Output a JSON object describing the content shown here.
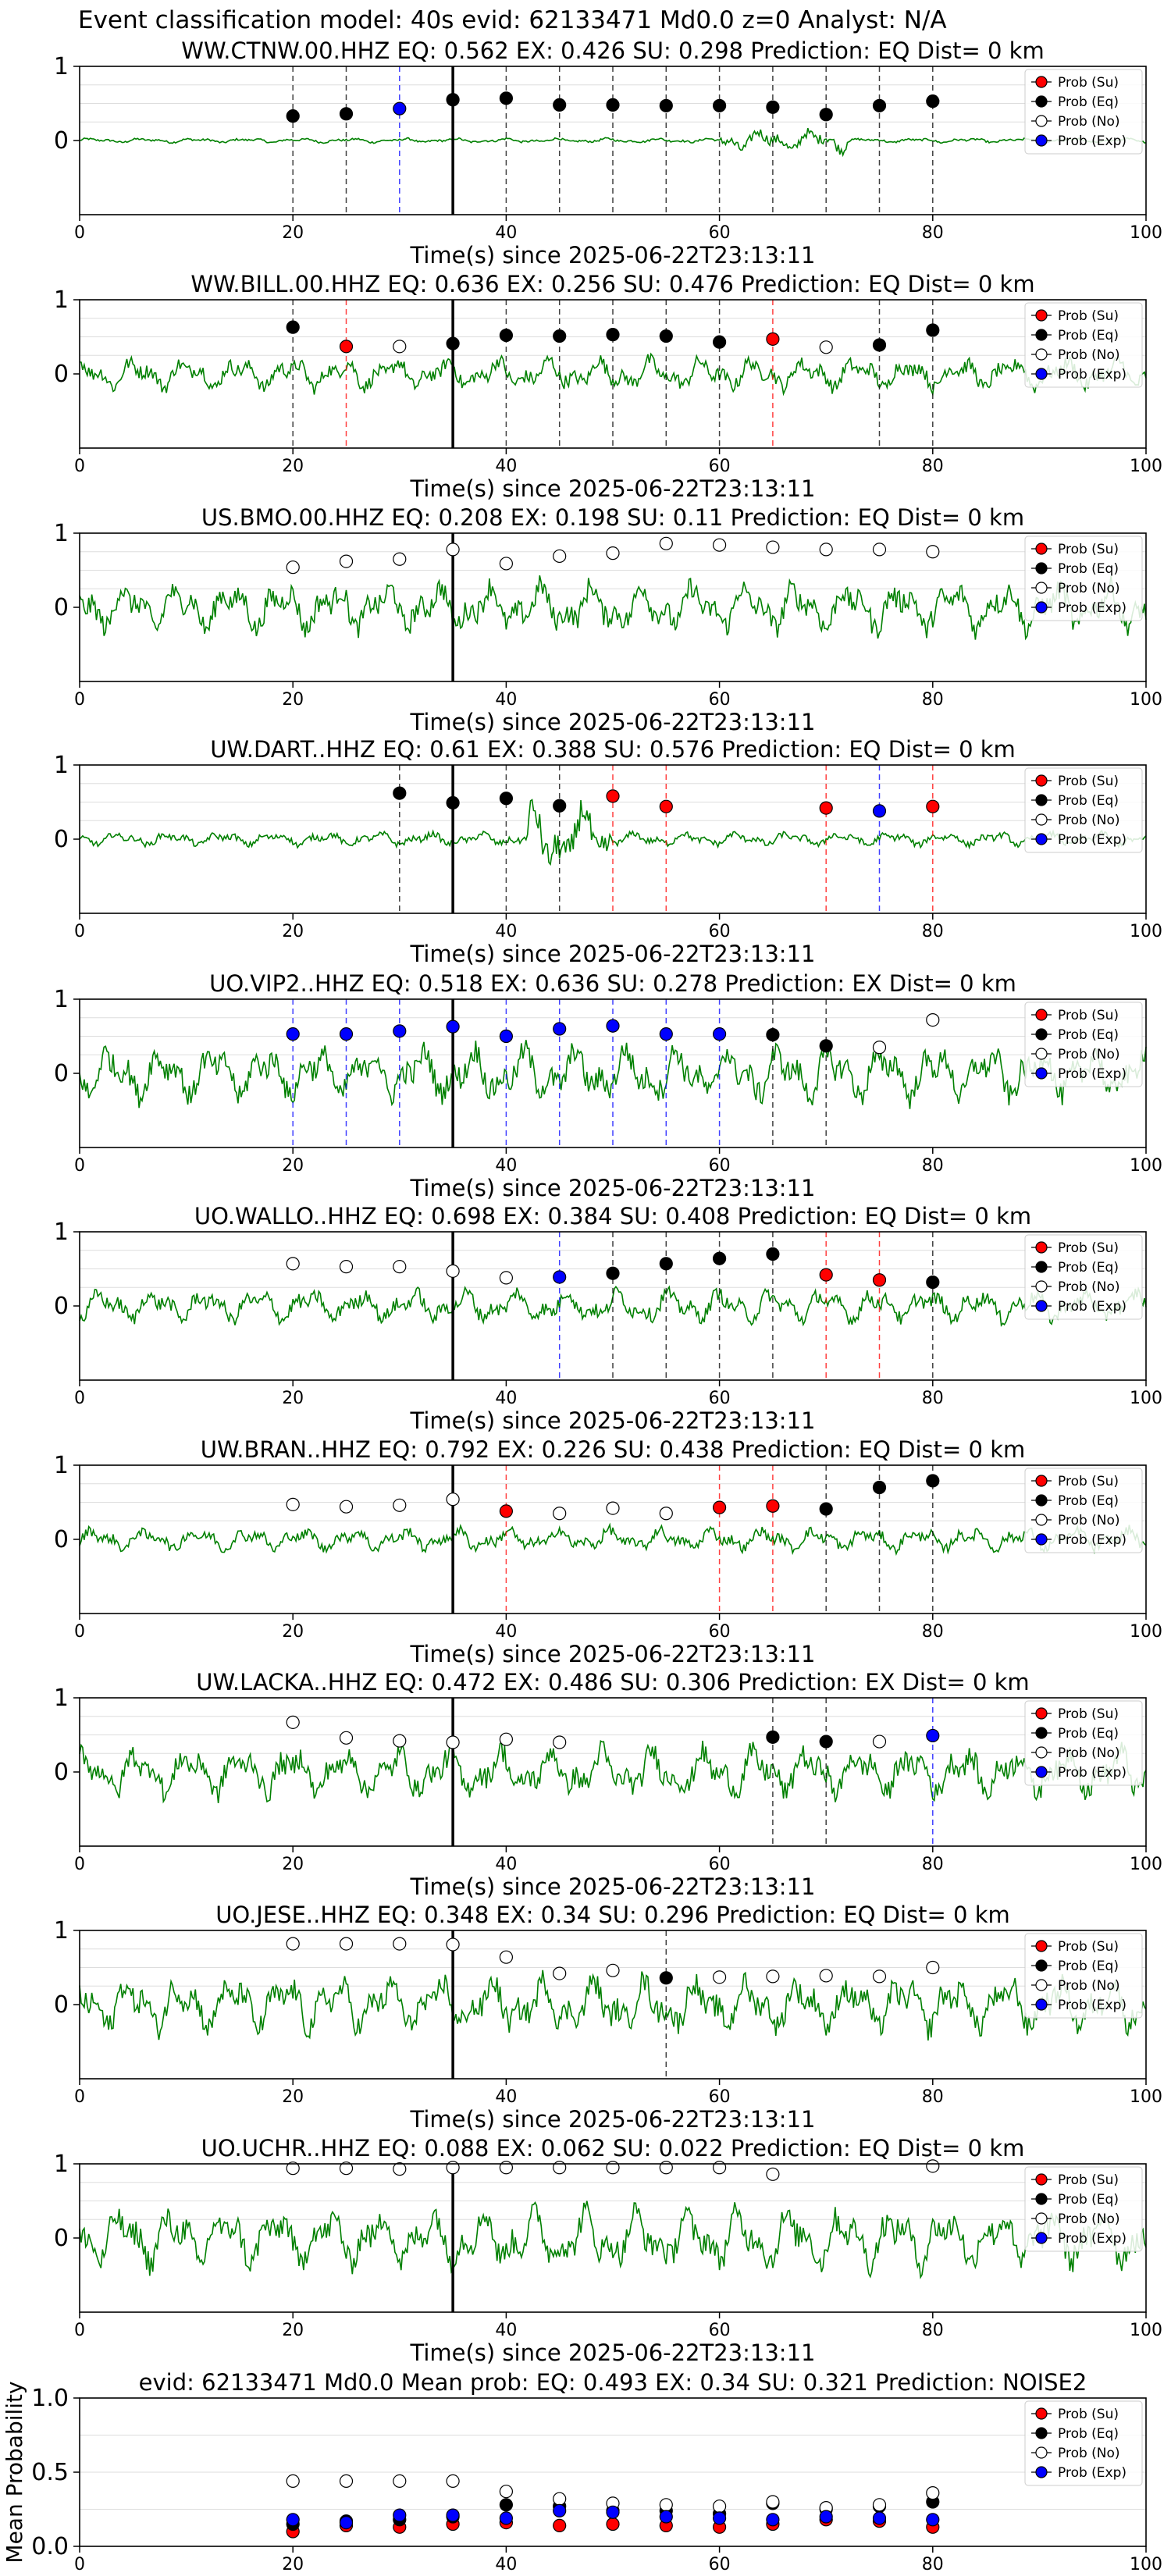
{
  "figure": {
    "suptitle": "Event classification model: 40s evid: 62133471 Md0.0 z=0 Analyst: N/A",
    "legend_labels": [
      "Prob (Su)",
      "Prob (Eq)",
      "Prob (No)",
      "Prob (Exp)"
    ],
    "colors": {
      "su": "#ff0000",
      "eq": "#000000",
      "no": "#ffffff",
      "exp": "#0000ff",
      "trace": "#008000",
      "pick_line": "#000000"
    }
  },
  "chart_data": [
    {
      "type": "scatter",
      "title": "WW.CTNW.00.HHZ   EQ: 0.562  EX: 0.426  SU: 0.298   Prediction: EQ    Dist= 0 km",
      "xlabel": "Time(s) since 2025-06-22T23:13:11",
      "xlim": [
        0,
        100
      ],
      "ylim": [
        -1,
        1
      ],
      "xticks": [
        "0",
        "20",
        "40",
        "60",
        "80",
        "100"
      ],
      "yticks": [
        "0",
        "1"
      ],
      "pick_time": 35,
      "trace_amp": 0.05,
      "points": [
        {
          "t": 20,
          "p": 0.33,
          "c": "eq"
        },
        {
          "t": 25,
          "p": 0.36,
          "c": "eq"
        },
        {
          "t": 30,
          "p": 0.43,
          "c": "exp"
        },
        {
          "t": 35,
          "p": 0.55,
          "c": "eq"
        },
        {
          "t": 40,
          "p": 0.57,
          "c": "eq"
        },
        {
          "t": 45,
          "p": 0.48,
          "c": "eq"
        },
        {
          "t": 50,
          "p": 0.48,
          "c": "eq"
        },
        {
          "t": 55,
          "p": 0.47,
          "c": "eq"
        },
        {
          "t": 60,
          "p": 0.47,
          "c": "eq"
        },
        {
          "t": 65,
          "p": 0.45,
          "c": "eq"
        },
        {
          "t": 70,
          "p": 0.35,
          "c": "eq"
        },
        {
          "t": 75,
          "p": 0.47,
          "c": "eq"
        },
        {
          "t": 80,
          "p": 0.53,
          "c": "eq"
        }
      ]
    },
    {
      "type": "scatter",
      "title": "WW.BILL.00.HHZ   EQ: 0.636  EX: 0.256  SU: 0.476   Prediction: EQ    Dist= 0 km",
      "xlabel": "Time(s) since 2025-06-22T23:13:11",
      "xlim": [
        0,
        100
      ],
      "ylim": [
        -1,
        1
      ],
      "xticks": [
        "0",
        "20",
        "40",
        "60",
        "80",
        "100"
      ],
      "yticks": [
        "0",
        "1"
      ],
      "pick_time": 35,
      "trace_amp": 0.35,
      "points": [
        {
          "t": 20,
          "p": 0.63,
          "c": "eq"
        },
        {
          "t": 25,
          "p": 0.37,
          "c": "su"
        },
        {
          "t": 30,
          "p": 0.37,
          "c": "no"
        },
        {
          "t": 35,
          "p": 0.41,
          "c": "eq"
        },
        {
          "t": 40,
          "p": 0.52,
          "c": "eq"
        },
        {
          "t": 45,
          "p": 0.51,
          "c": "eq"
        },
        {
          "t": 50,
          "p": 0.53,
          "c": "eq"
        },
        {
          "t": 55,
          "p": 0.51,
          "c": "eq"
        },
        {
          "t": 60,
          "p": 0.43,
          "c": "eq"
        },
        {
          "t": 65,
          "p": 0.47,
          "c": "su"
        },
        {
          "t": 70,
          "p": 0.36,
          "c": "no"
        },
        {
          "t": 75,
          "p": 0.39,
          "c": "eq"
        },
        {
          "t": 80,
          "p": 0.59,
          "c": "eq"
        }
      ]
    },
    {
      "type": "scatter",
      "title": "US.BMO.00.HHZ   EQ: 0.208  EX: 0.198  SU: 0.11   Prediction: EQ    Dist= 0 km",
      "xlabel": "Time(s) since 2025-06-22T23:13:11",
      "xlim": [
        0,
        100
      ],
      "ylim": [
        -1,
        1
      ],
      "xticks": [
        "0",
        "20",
        "40",
        "60",
        "80",
        "100"
      ],
      "yticks": [
        "0",
        "1"
      ],
      "pick_time": 35,
      "trace_amp": 0.55,
      "points": [
        {
          "t": 20,
          "p": 0.54,
          "c": "no"
        },
        {
          "t": 25,
          "p": 0.62,
          "c": "no"
        },
        {
          "t": 30,
          "p": 0.65,
          "c": "no"
        },
        {
          "t": 35,
          "p": 0.78,
          "c": "no"
        },
        {
          "t": 40,
          "p": 0.59,
          "c": "no"
        },
        {
          "t": 45,
          "p": 0.69,
          "c": "no"
        },
        {
          "t": 50,
          "p": 0.73,
          "c": "no"
        },
        {
          "t": 55,
          "p": 0.86,
          "c": "no"
        },
        {
          "t": 60,
          "p": 0.84,
          "c": "no"
        },
        {
          "t": 65,
          "p": 0.81,
          "c": "no"
        },
        {
          "t": 70,
          "p": 0.78,
          "c": "no"
        },
        {
          "t": 75,
          "p": 0.78,
          "c": "no"
        },
        {
          "t": 80,
          "p": 0.75,
          "c": "no"
        }
      ]
    },
    {
      "type": "scatter",
      "title": "UW.DART..HHZ   EQ: 0.61  EX: 0.388  SU: 0.576   Prediction: EQ    Dist= 0 km",
      "xlabel": "Time(s) since 2025-06-22T23:13:11",
      "xlim": [
        0,
        100
      ],
      "ylim": [
        -1,
        1
      ],
      "xticks": [
        "0",
        "20",
        "40",
        "60",
        "80",
        "100"
      ],
      "yticks": [
        "0",
        "1"
      ],
      "pick_time": 35,
      "trace_amp": 0.15,
      "points": [
        {
          "t": 30,
          "p": 0.62,
          "c": "eq"
        },
        {
          "t": 35,
          "p": 0.49,
          "c": "eq"
        },
        {
          "t": 40,
          "p": 0.55,
          "c": "eq"
        },
        {
          "t": 45,
          "p": 0.45,
          "c": "eq"
        },
        {
          "t": 50,
          "p": 0.58,
          "c": "su"
        },
        {
          "t": 55,
          "p": 0.44,
          "c": "su"
        },
        {
          "t": 70,
          "p": 0.42,
          "c": "su"
        },
        {
          "t": 75,
          "p": 0.38,
          "c": "exp"
        },
        {
          "t": 80,
          "p": 0.44,
          "c": "su"
        }
      ]
    },
    {
      "type": "scatter",
      "title": "UO.VIP2..HHZ   EQ: 0.518  EX: 0.636  SU: 0.278   Prediction: EX    Dist= 0 km",
      "xlabel": "Time(s) since 2025-06-22T23:13:11",
      "xlim": [
        0,
        100
      ],
      "ylim": [
        -1,
        1
      ],
      "xticks": [
        "0",
        "20",
        "40",
        "60",
        "80",
        "100"
      ],
      "yticks": [
        "0",
        "1"
      ],
      "pick_time": 35,
      "trace_amp": 0.6,
      "points": [
        {
          "t": 20,
          "p": 0.53,
          "c": "exp"
        },
        {
          "t": 25,
          "p": 0.53,
          "c": "exp"
        },
        {
          "t": 30,
          "p": 0.57,
          "c": "exp"
        },
        {
          "t": 35,
          "p": 0.63,
          "c": "exp"
        },
        {
          "t": 40,
          "p": 0.5,
          "c": "exp"
        },
        {
          "t": 45,
          "p": 0.6,
          "c": "exp"
        },
        {
          "t": 50,
          "p": 0.64,
          "c": "exp"
        },
        {
          "t": 55,
          "p": 0.53,
          "c": "exp"
        },
        {
          "t": 60,
          "p": 0.53,
          "c": "exp"
        },
        {
          "t": 65,
          "p": 0.52,
          "c": "eq"
        },
        {
          "t": 70,
          "p": 0.37,
          "c": "eq"
        },
        {
          "t": 75,
          "p": 0.35,
          "c": "no"
        },
        {
          "t": 80,
          "p": 0.72,
          "c": "no"
        }
      ]
    },
    {
      "type": "scatter",
      "title": "UO.WALLO..HHZ   EQ: 0.698  EX: 0.384  SU: 0.408   Prediction: EQ    Dist= 0 km",
      "xlabel": "Time(s) since 2025-06-22T23:13:11",
      "xlim": [
        0,
        100
      ],
      "ylim": [
        -1,
        1
      ],
      "xticks": [
        "0",
        "20",
        "40",
        "60",
        "80",
        "100"
      ],
      "yticks": [
        "0",
        "1"
      ],
      "pick_time": 35,
      "trace_amp": 0.35,
      "points": [
        {
          "t": 20,
          "p": 0.57,
          "c": "no"
        },
        {
          "t": 25,
          "p": 0.53,
          "c": "no"
        },
        {
          "t": 30,
          "p": 0.53,
          "c": "no"
        },
        {
          "t": 35,
          "p": 0.47,
          "c": "no"
        },
        {
          "t": 40,
          "p": 0.38,
          "c": "no"
        },
        {
          "t": 45,
          "p": 0.39,
          "c": "exp"
        },
        {
          "t": 50,
          "p": 0.44,
          "c": "eq"
        },
        {
          "t": 55,
          "p": 0.57,
          "c": "eq"
        },
        {
          "t": 60,
          "p": 0.64,
          "c": "eq"
        },
        {
          "t": 65,
          "p": 0.7,
          "c": "eq"
        },
        {
          "t": 70,
          "p": 0.42,
          "c": "su"
        },
        {
          "t": 75,
          "p": 0.35,
          "c": "su"
        },
        {
          "t": 80,
          "p": 0.32,
          "c": "eq"
        }
      ]
    },
    {
      "type": "scatter",
      "title": "UW.BRAN..HHZ   EQ: 0.792  EX: 0.226  SU: 0.438   Prediction: EQ    Dist= 0 km",
      "xlabel": "Time(s) since 2025-06-22T23:13:11",
      "xlim": [
        0,
        100
      ],
      "ylim": [
        -1,
        1
      ],
      "xticks": [
        "0",
        "20",
        "40",
        "60",
        "80",
        "100"
      ],
      "yticks": [
        "0",
        "1"
      ],
      "pick_time": 35,
      "trace_amp": 0.25,
      "points": [
        {
          "t": 20,
          "p": 0.47,
          "c": "no"
        },
        {
          "t": 25,
          "p": 0.44,
          "c": "no"
        },
        {
          "t": 30,
          "p": 0.46,
          "c": "no"
        },
        {
          "t": 35,
          "p": 0.54,
          "c": "no"
        },
        {
          "t": 40,
          "p": 0.38,
          "c": "su"
        },
        {
          "t": 45,
          "p": 0.35,
          "c": "no"
        },
        {
          "t": 50,
          "p": 0.42,
          "c": "no"
        },
        {
          "t": 55,
          "p": 0.35,
          "c": "no"
        },
        {
          "t": 60,
          "p": 0.43,
          "c": "su"
        },
        {
          "t": 65,
          "p": 0.45,
          "c": "su"
        },
        {
          "t": 70,
          "p": 0.41,
          "c": "eq"
        },
        {
          "t": 75,
          "p": 0.7,
          "c": "eq"
        },
        {
          "t": 80,
          "p": 0.79,
          "c": "eq"
        }
      ]
    },
    {
      "type": "scatter",
      "title": "UW.LACKA..HHZ   EQ: 0.472  EX: 0.486  SU: 0.306   Prediction: EX    Dist= 0 km",
      "xlabel": "Time(s) since 2025-06-22T23:13:11",
      "xlim": [
        0,
        100
      ],
      "ylim": [
        -1,
        1
      ],
      "xticks": [
        "0",
        "20",
        "40",
        "60",
        "80",
        "100"
      ],
      "yticks": [
        "0",
        "1"
      ],
      "pick_time": 35,
      "trace_amp": 0.55,
      "points": [
        {
          "t": 20,
          "p": 0.67,
          "c": "no"
        },
        {
          "t": 25,
          "p": 0.46,
          "c": "no"
        },
        {
          "t": 30,
          "p": 0.42,
          "c": "no"
        },
        {
          "t": 35,
          "p": 0.4,
          "c": "no"
        },
        {
          "t": 40,
          "p": 0.44,
          "c": "no"
        },
        {
          "t": 45,
          "p": 0.4,
          "c": "no"
        },
        {
          "t": 65,
          "p": 0.47,
          "c": "eq"
        },
        {
          "t": 70,
          "p": 0.41,
          "c": "eq"
        },
        {
          "t": 75,
          "p": 0.41,
          "c": "no"
        },
        {
          "t": 80,
          "p": 0.49,
          "c": "exp"
        }
      ]
    },
    {
      "type": "scatter",
      "title": "UO.JESE..HHZ   EQ: 0.348  EX: 0.34  SU: 0.296   Prediction: EQ    Dist= 0 km",
      "xlabel": "Time(s) since 2025-06-22T23:13:11",
      "xlim": [
        0,
        100
      ],
      "ylim": [
        -1,
        1
      ],
      "xticks": [
        "0",
        "20",
        "40",
        "60",
        "80",
        "100"
      ],
      "yticks": [
        "0",
        "1"
      ],
      "pick_time": 35,
      "trace_amp": 0.6,
      "points": [
        {
          "t": 20,
          "p": 0.82,
          "c": "no"
        },
        {
          "t": 25,
          "p": 0.82,
          "c": "no"
        },
        {
          "t": 30,
          "p": 0.82,
          "c": "no"
        },
        {
          "t": 35,
          "p": 0.81,
          "c": "no"
        },
        {
          "t": 40,
          "p": 0.64,
          "c": "no"
        },
        {
          "t": 45,
          "p": 0.42,
          "c": "no"
        },
        {
          "t": 50,
          "p": 0.46,
          "c": "no"
        },
        {
          "t": 55,
          "p": 0.36,
          "c": "eq"
        },
        {
          "t": 60,
          "p": 0.37,
          "c": "no"
        },
        {
          "t": 65,
          "p": 0.38,
          "c": "no"
        },
        {
          "t": 70,
          "p": 0.39,
          "c": "no"
        },
        {
          "t": 75,
          "p": 0.38,
          "c": "no"
        },
        {
          "t": 80,
          "p": 0.5,
          "c": "no"
        }
      ]
    },
    {
      "type": "scatter",
      "title": "UO.UCHR..HHZ   EQ: 0.088  EX: 0.062  SU: 0.022   Prediction: EQ    Dist= 0 km",
      "xlabel": "Time(s) since 2025-06-22T23:13:11",
      "xlim": [
        0,
        100
      ],
      "ylim": [
        -1,
        1
      ],
      "xticks": [
        "0",
        "20",
        "40",
        "60",
        "80",
        "100"
      ],
      "yticks": [
        "0",
        "1"
      ],
      "pick_time": 35,
      "trace_amp": 0.65,
      "points": [
        {
          "t": 20,
          "p": 0.94,
          "c": "no"
        },
        {
          "t": 25,
          "p": 0.94,
          "c": "no"
        },
        {
          "t": 30,
          "p": 0.93,
          "c": "no"
        },
        {
          "t": 35,
          "p": 0.95,
          "c": "no"
        },
        {
          "t": 40,
          "p": 0.95,
          "c": "no"
        },
        {
          "t": 45,
          "p": 0.95,
          "c": "no"
        },
        {
          "t": 50,
          "p": 0.95,
          "c": "no"
        },
        {
          "t": 55,
          "p": 0.95,
          "c": "no"
        },
        {
          "t": 60,
          "p": 0.95,
          "c": "no"
        },
        {
          "t": 65,
          "p": 0.86,
          "c": "no"
        },
        {
          "t": 80,
          "p": 0.97,
          "c": "no"
        }
      ]
    },
    {
      "type": "scatter",
      "title": "evid: 62133471  Md0.0   Mean prob:   EQ: 0.493  EX: 0.34  SU: 0.321   Prediction: NOISE2",
      "xlabel": "",
      "ylabel": "Mean Probability",
      "xlim": [
        0,
        100
      ],
      "ylim": [
        0,
        1
      ],
      "xticks": [
        "0",
        "20",
        "40",
        "60",
        "80",
        "100"
      ],
      "yticks": [
        "0.0",
        "0.5",
        "1.0"
      ],
      "series": [
        {
          "name": "Prob (Su)",
          "c": "su",
          "x": [
            20,
            25,
            30,
            35,
            40,
            45,
            50,
            55,
            60,
            65,
            70,
            75,
            80
          ],
          "y": [
            0.1,
            0.14,
            0.13,
            0.15,
            0.16,
            0.14,
            0.15,
            0.14,
            0.13,
            0.15,
            0.18,
            0.17,
            0.13
          ]
        },
        {
          "name": "Prob (Eq)",
          "c": "eq",
          "x": [
            20,
            25,
            30,
            35,
            40,
            45,
            50,
            55,
            60,
            65,
            70,
            75,
            80
          ],
          "y": [
            0.15,
            0.17,
            0.18,
            0.2,
            0.28,
            0.27,
            0.24,
            0.24,
            0.22,
            0.29,
            0.25,
            0.27,
            0.3
          ]
        },
        {
          "name": "Prob (No)",
          "c": "no",
          "x": [
            20,
            25,
            30,
            35,
            40,
            45,
            50,
            55,
            60,
            65,
            70,
            75,
            80
          ],
          "y": [
            0.44,
            0.44,
            0.44,
            0.44,
            0.37,
            0.32,
            0.29,
            0.28,
            0.27,
            0.3,
            0.26,
            0.28,
            0.36
          ]
        },
        {
          "name": "Prob (Exp)",
          "c": "exp",
          "x": [
            20,
            25,
            30,
            35,
            40,
            45,
            50,
            55,
            60,
            65,
            70,
            75,
            80
          ],
          "y": [
            0.18,
            0.16,
            0.21,
            0.21,
            0.19,
            0.24,
            0.23,
            0.2,
            0.19,
            0.18,
            0.2,
            0.19,
            0.18
          ]
        }
      ]
    }
  ]
}
